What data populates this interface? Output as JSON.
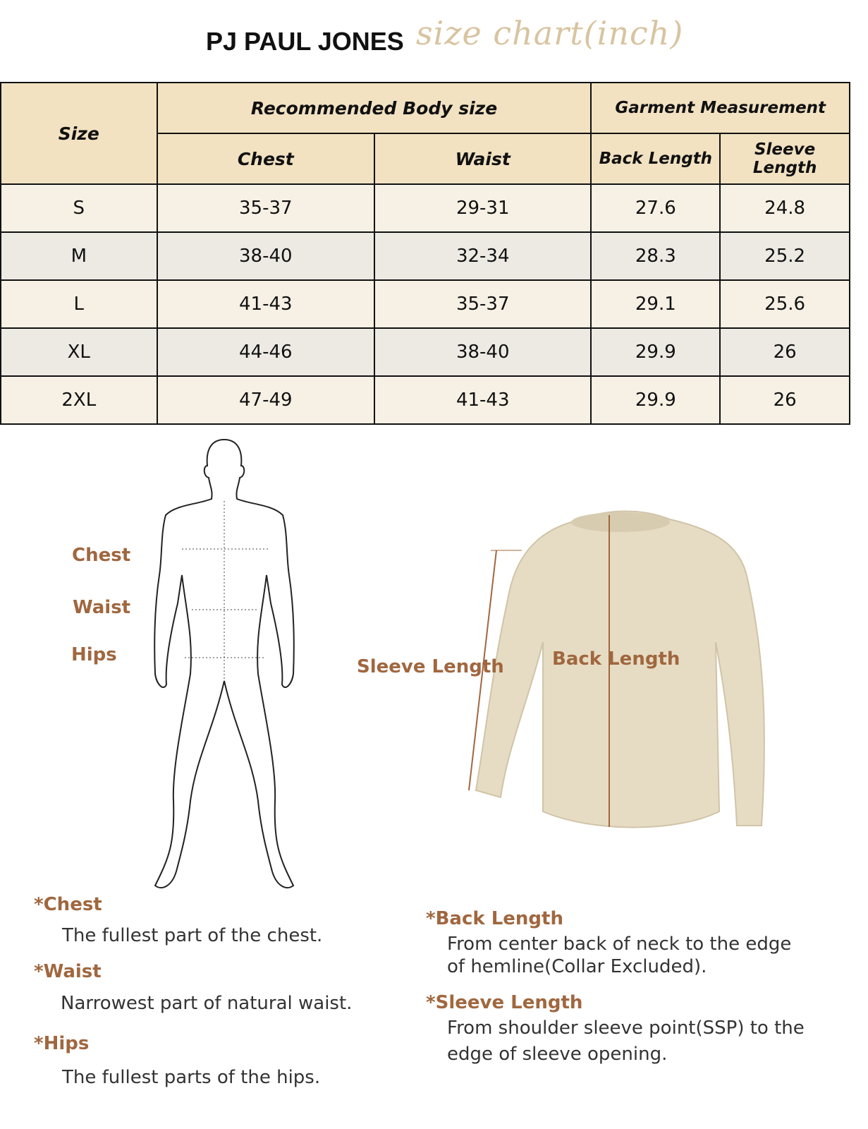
{
  "header": {
    "brand": "PJ PAUL JONES",
    "subtitle": "size chart(inch)"
  },
  "table": {
    "size_header": "Size",
    "group_body": "Recommended Body size",
    "group_garment": "Garment Measurement",
    "columns": [
      "Chest",
      "Waist",
      "Back Length",
      "Sleeve Length"
    ],
    "rows": [
      [
        "S",
        "35-37",
        "29-31",
        "27.6",
        "24.8"
      ],
      [
        "M",
        "38-40",
        "32-34",
        "28.3",
        "25.2"
      ],
      [
        "L",
        "41-43",
        "35-37",
        "29.1",
        "25.6"
      ],
      [
        "XL",
        "44-46",
        "38-40",
        "29.9",
        "26"
      ],
      [
        "2XL",
        "47-49",
        "41-43",
        "29.9",
        "26"
      ]
    ]
  },
  "figure": {
    "body_labels": [
      "Chest",
      "Waist",
      "Hips"
    ],
    "sweater_labels": {
      "sleeve": "Sleeve Length",
      "back": "Back Length"
    }
  },
  "definitions": {
    "chest": {
      "title": "*Chest",
      "text": "The fullest part of the chest."
    },
    "waist": {
      "title": "*Waist",
      "text": "Narrowest part of natural waist."
    },
    "hips": {
      "title": "*Hips",
      "text": "The fullest parts of the hips."
    },
    "back": {
      "title": "*Back Length",
      "text": "From center back of neck to the edge",
      "text2": "of hemline(Collar Excluded)."
    },
    "sleeve": {
      "title": "*Sleeve Length",
      "text": "From shoulder sleeve point(SSP) to the",
      "text2": "edge of sleeve opening."
    }
  },
  "colors": {
    "header_bg": "#f2e2c2",
    "row_light": "#f6f1e4",
    "row_gray": "#edeae4",
    "label": "#a0673f"
  }
}
